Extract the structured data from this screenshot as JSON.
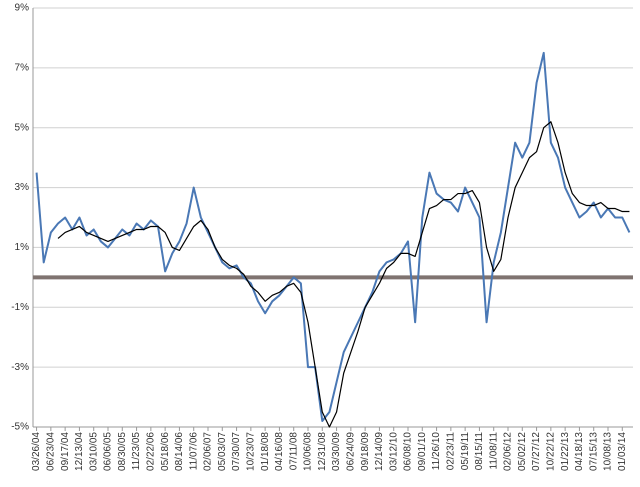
{
  "chart_data": {
    "type": "line",
    "categories": [
      "03/26/04",
      null,
      "06/23/04",
      null,
      "09/17/04",
      null,
      "12/13/04",
      null,
      "03/10/05",
      null,
      "06/06/05",
      null,
      "08/30/05",
      null,
      "11/23/05",
      null,
      "02/22/06",
      null,
      "05/18/06",
      null,
      "08/14/06",
      null,
      "11/07/06",
      null,
      "02/06/07",
      null,
      "05/03/07",
      null,
      "07/30/07",
      null,
      "10/23/07",
      null,
      "01/18/08",
      null,
      "04/16/08",
      null,
      "07/11/08",
      null,
      "10/06/08",
      null,
      "12/31/08",
      null,
      "03/30/09",
      null,
      "06/24/09",
      null,
      "09/18/09",
      null,
      "12/14/09",
      null,
      "03/12/10",
      null,
      "06/08/10",
      null,
      "09/01/10",
      null,
      "11/26/10",
      null,
      "02/23/11",
      null,
      "05/19/11",
      null,
      "08/15/11",
      null,
      "11/08/11",
      null,
      "02/06/12",
      null,
      "05/02/12",
      null,
      "07/27/12",
      null,
      "10/22/12",
      null,
      "01/22/13",
      null,
      "04/18/13",
      null,
      "07/15/13",
      null,
      "10/08/13",
      null,
      "01/03/14",
      null
    ],
    "series": [
      {
        "color": "#4a78b5",
        "values": [
          3.5,
          0.5,
          1.5,
          1.8,
          2.0,
          1.6,
          2.0,
          1.4,
          1.6,
          1.2,
          1.0,
          1.3,
          1.6,
          1.4,
          1.8,
          1.6,
          1.9,
          1.7,
          0.2,
          0.8,
          1.2,
          1.8,
          3.0,
          2.0,
          1.5,
          1.0,
          0.5,
          0.3,
          0.4,
          0.0,
          -0.2,
          -0.8,
          -1.2,
          -0.8,
          -0.6,
          -0.3,
          0.0,
          -0.2,
          -3.0,
          -3.0,
          -4.8,
          -4.5,
          -3.5,
          -2.5,
          -2.0,
          -1.5,
          -1.0,
          -0.5,
          0.2,
          0.5,
          0.6,
          0.8,
          1.2,
          -1.5,
          2.0,
          3.5,
          2.8,
          2.6,
          2.5,
          2.2,
          3.0,
          2.5,
          2.0,
          -1.5,
          0.5,
          1.5,
          3.0,
          4.5,
          4.0,
          4.5,
          6.5,
          7.5,
          4.5,
          4.0,
          3.0,
          2.5,
          2.0,
          2.2,
          2.5,
          2.0,
          2.3,
          2.0,
          2.0,
          1.5
        ]
      },
      {
        "color": "#000000",
        "values": [
          null,
          null,
          null,
          1.3,
          1.5,
          1.6,
          1.7,
          1.5,
          1.4,
          1.3,
          1.2,
          1.3,
          1.4,
          1.5,
          1.6,
          1.6,
          1.7,
          1.7,
          1.5,
          1.0,
          0.9,
          1.3,
          1.7,
          1.9,
          1.6,
          1.0,
          0.6,
          0.4,
          0.3,
          0.1,
          -0.3,
          -0.5,
          -0.8,
          -0.6,
          -0.5,
          -0.3,
          -0.2,
          -0.5,
          -1.5,
          -3.0,
          -4.5,
          -5.0,
          -4.5,
          -3.2,
          -2.5,
          -1.8,
          -1.0,
          -0.6,
          -0.2,
          0.3,
          0.5,
          0.8,
          0.8,
          0.7,
          1.5,
          2.3,
          2.4,
          2.6,
          2.6,
          2.8,
          2.8,
          2.9,
          2.5,
          1.0,
          0.2,
          0.6,
          2.0,
          3.0,
          3.5,
          4.0,
          4.2,
          5.0,
          5.2,
          4.5,
          3.5,
          2.8,
          2.5,
          2.4,
          2.4,
          2.5,
          2.3,
          2.3,
          2.2,
          2.2
        ]
      }
    ],
    "ylim": [
      -5,
      9
    ],
    "yticks": [
      {
        "value": -5,
        "label": "-5%"
      },
      {
        "value": -3,
        "label": "-3%"
      },
      {
        "value": -1,
        "label": "-1%"
      },
      {
        "value": 1,
        "label": "1%"
      },
      {
        "value": 3,
        "label": "3%"
      },
      {
        "value": 5,
        "label": "5%"
      },
      {
        "value": 7,
        "label": "7%"
      },
      {
        "value": 9,
        "label": "9%"
      }
    ],
    "grid": true,
    "reference_line": {
      "value": 0,
      "color": "#7f7370"
    }
  }
}
